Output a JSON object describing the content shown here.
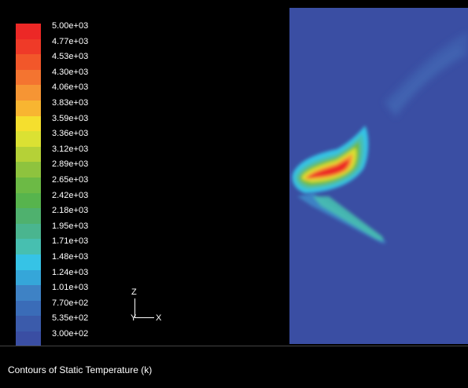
{
  "legend": {
    "title": "",
    "levels": [
      {
        "label": "5.00e+03",
        "color": "#ec2826"
      },
      {
        "label": "4.77e+03",
        "color": "#ef3a28"
      },
      {
        "label": "4.53e+03",
        "color": "#f2572a"
      },
      {
        "label": "4.30e+03",
        "color": "#f47430"
      },
      {
        "label": "4.06e+03",
        "color": "#f69534"
      },
      {
        "label": "3.83e+03",
        "color": "#f8b531"
      },
      {
        "label": "3.59e+03",
        "color": "#f5df2e"
      },
      {
        "label": "3.36e+03",
        "color": "#dbe133"
      },
      {
        "label": "3.12e+03",
        "color": "#b5d137"
      },
      {
        "label": "2.89e+03",
        "color": "#8ec33e"
      },
      {
        "label": "2.65e+03",
        "color": "#6cba45"
      },
      {
        "label": "2.42e+03",
        "color": "#57b44d"
      },
      {
        "label": "2.18e+03",
        "color": "#4fb16e"
      },
      {
        "label": "1.95e+03",
        "color": "#4ab58f"
      },
      {
        "label": "1.71e+03",
        "color": "#47bfb0"
      },
      {
        "label": "1.48e+03",
        "color": "#36c3e6"
      },
      {
        "label": "1.24e+03",
        "color": "#35a6d9"
      },
      {
        "label": "1.01e+03",
        "color": "#3e82c5"
      },
      {
        "label": "7.70e+02",
        "color": "#3a6cb8"
      },
      {
        "label": "5.35e+02",
        "color": "#3b5bab"
      },
      {
        "label": "3.00e+02",
        "color": "#3a4ea3"
      }
    ]
  },
  "axes": {
    "z_label": "Z",
    "x_label": "X",
    "y_label": "Y"
  },
  "caption": "Contours of Static Temperature (k)",
  "colors": {
    "background": "#000000",
    "domain_base": "#3a4ea3",
    "hot_core": "#ec2826"
  }
}
